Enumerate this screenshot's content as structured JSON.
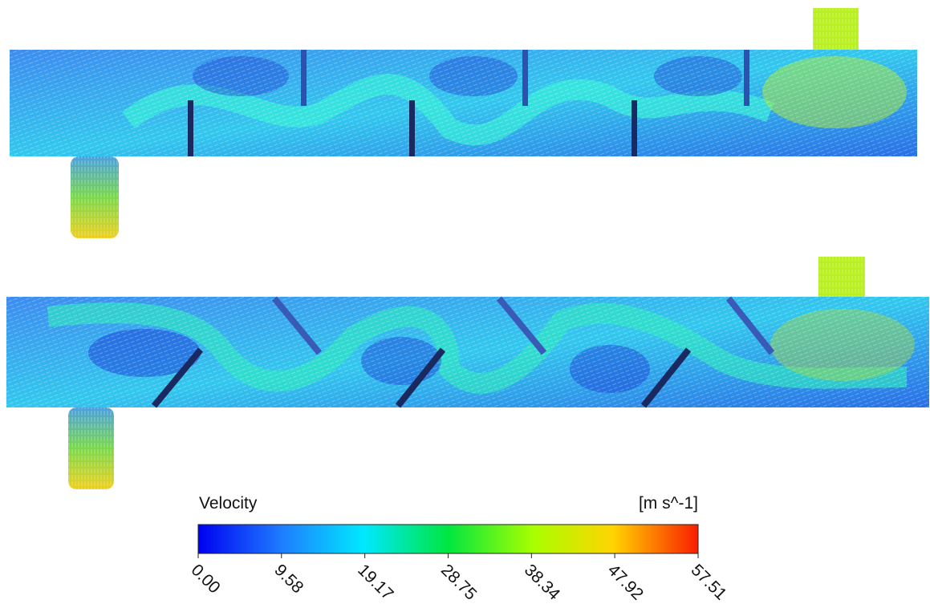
{
  "legend": {
    "title": "Velocity",
    "unit": "[m s^-1]",
    "ticks": [
      {
        "value": 0,
        "label": "0.00"
      },
      {
        "value": 9.58,
        "label": "9.58"
      },
      {
        "value": 19.17,
        "label": "19.17"
      },
      {
        "value": 28.75,
        "label": "28.75"
      },
      {
        "value": 38.34,
        "label": "38.34"
      },
      {
        "value": 47.92,
        "label": "47.92"
      },
      {
        "value": 57.51,
        "label": "57.51"
      }
    ]
  }
}
